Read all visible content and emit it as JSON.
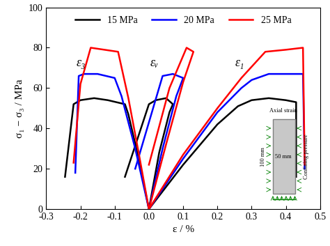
{
  "chart_data": {
    "type": "line",
    "x_label": "ε / %",
    "y_label": "σ₁ − σ₃ / MPa",
    "xlim": [
      -0.3,
      0.5
    ],
    "xticks": [
      -0.3,
      -0.2,
      -0.1,
      0.0,
      0.1,
      0.2,
      0.3,
      0.4,
      0.5
    ],
    "ylim": [
      0,
      100
    ],
    "yticks": [
      0,
      20,
      40,
      60,
      80,
      100
    ],
    "grid": false,
    "legend": "upper center",
    "annotations": [
      "ε₃",
      "εᵥ",
      "ε₁"
    ],
    "specimen": {
      "top_label": "Axial strain",
      "width_label": "50 mm",
      "height_label": "100 mm",
      "side_label": "Confining pressure"
    },
    "series": [
      {
        "name": "15 MPa",
        "color": "#000000",
        "curves": [
          {
            "x": [
              0.0,
              -0.03,
              -0.06,
              -0.07,
              -0.12,
              -0.16,
              -0.2,
              -0.22,
              -0.245
            ],
            "values": [
              0,
              25,
              47,
              52,
              54,
              55,
              54,
              52,
              16
            ]
          },
          {
            "x": [
              0.0,
              0.03,
              0.06,
              0.07,
              0.05,
              0.02,
              0.0,
              -0.07
            ],
            "values": [
              0,
              28,
              48,
              52,
              55,
              54,
              52,
              16
            ]
          },
          {
            "x": [
              0.0,
              0.1,
              0.2,
              0.26,
              0.3,
              0.35,
              0.4,
              0.43,
              0.43
            ],
            "values": [
              0,
              22,
              42,
              51,
              54,
              55,
              54,
              53,
              16
            ]
          }
        ]
      },
      {
        "name": "20 MPa",
        "color": "#0000ff",
        "curves": [
          {
            "x": [
              0.0,
              -0.04,
              -0.08,
              -0.1,
              -0.15,
              -0.19,
              -0.205,
              -0.215
            ],
            "values": [
              0,
              30,
              56,
              65,
              67,
              67,
              66,
              18
            ]
          },
          {
            "x": [
              0.0,
              0.04,
              0.08,
              0.1,
              0.07,
              0.04,
              -0.04
            ],
            "values": [
              0,
              30,
              56,
              65,
              67,
              66,
              20
            ]
          },
          {
            "x": [
              0.0,
              0.1,
              0.2,
              0.27,
              0.3,
              0.35,
              0.45,
              0.455
            ],
            "values": [
              0,
              25,
              48,
              60,
              64,
              67,
              67,
              20
            ]
          }
        ]
      },
      {
        "name": "25 MPa",
        "color": "#ff0000",
        "curves": [
          {
            "x": [
              0.0,
              -0.03,
              -0.06,
              -0.09,
              -0.13,
              -0.17,
              -0.2,
              -0.22
            ],
            "values": [
              0,
              28,
              55,
              78,
              79,
              80,
              62,
              23
            ]
          },
          {
            "x": [
              0.0,
              0.05,
              0.1,
              0.13,
              0.11,
              0.06,
              0.0
            ],
            "values": [
              0,
              32,
              63,
              78,
              80,
              60,
              22
            ]
          },
          {
            "x": [
              0.0,
              0.1,
              0.2,
              0.27,
              0.34,
              0.4,
              0.45,
              0.455
            ],
            "values": [
              0,
              27,
              50,
              65,
              78,
              79,
              80,
              22
            ]
          }
        ]
      }
    ]
  }
}
